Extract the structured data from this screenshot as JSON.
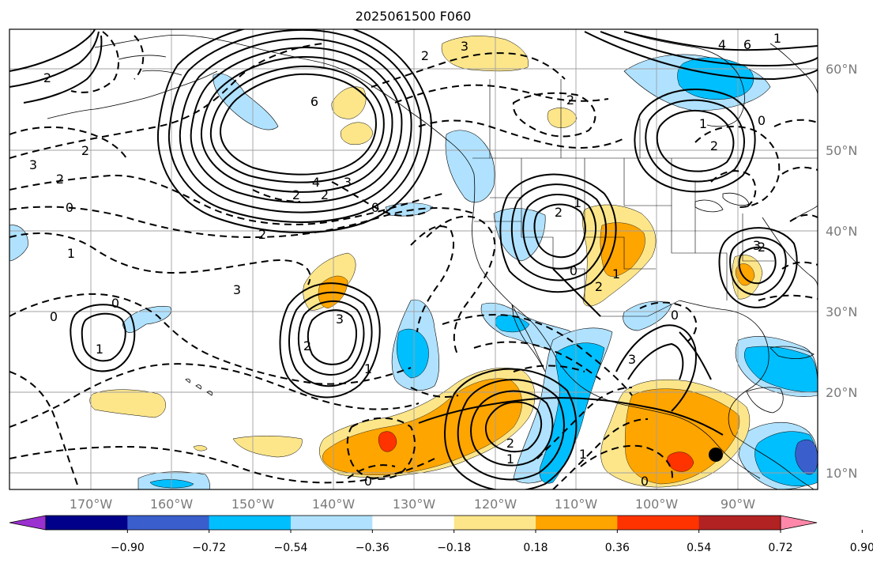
{
  "title": "2025061500 F060",
  "map": {
    "lon_labels": [
      "170°W",
      "160°W",
      "150°W",
      "140°W",
      "130°W",
      "120°W",
      "110°W",
      "100°W",
      "90°W"
    ],
    "lat_labels": [
      "60°N",
      "50°N",
      "40°N",
      "30°N",
      "20°N",
      "10°N"
    ],
    "marker": "black-dot"
  },
  "colorbar": {
    "tick_labels": [
      "−0.90",
      "−0.72",
      "−0.54",
      "−0.36",
      "−0.18",
      "0.18",
      "0.36",
      "0.54",
      "0.72",
      "0.90"
    ],
    "colors": [
      "#9b30d0",
      "#00008b",
      "#3a5fcd",
      "#00bfff",
      "#b0e2ff",
      "#ffffff",
      "#fde68a",
      "#ffa500",
      "#ff3300",
      "#b22222",
      "#ff88aa"
    ]
  },
  "contour_labels": [
    "3",
    "2",
    "6",
    "4",
    "3",
    "2",
    "2",
    "0",
    "2",
    "3",
    "0",
    "1",
    "2",
    "3",
    "1",
    "2",
    "1",
    "2",
    "2",
    "3",
    "0",
    "2",
    "2",
    "0",
    "1",
    "2",
    "1",
    "0",
    "0",
    "3",
    "1",
    "0",
    "2",
    "3",
    "1",
    "2",
    "1",
    "0",
    "0",
    "2",
    "6",
    "4",
    "1"
  ],
  "fill_colors": {
    "light_blue": "#b0e2ff",
    "cyan": "#00bfff",
    "blue": "#3a5fcd",
    "light_yellow": "#fde68a",
    "orange": "#ffa500",
    "red": "#ff3300"
  }
}
